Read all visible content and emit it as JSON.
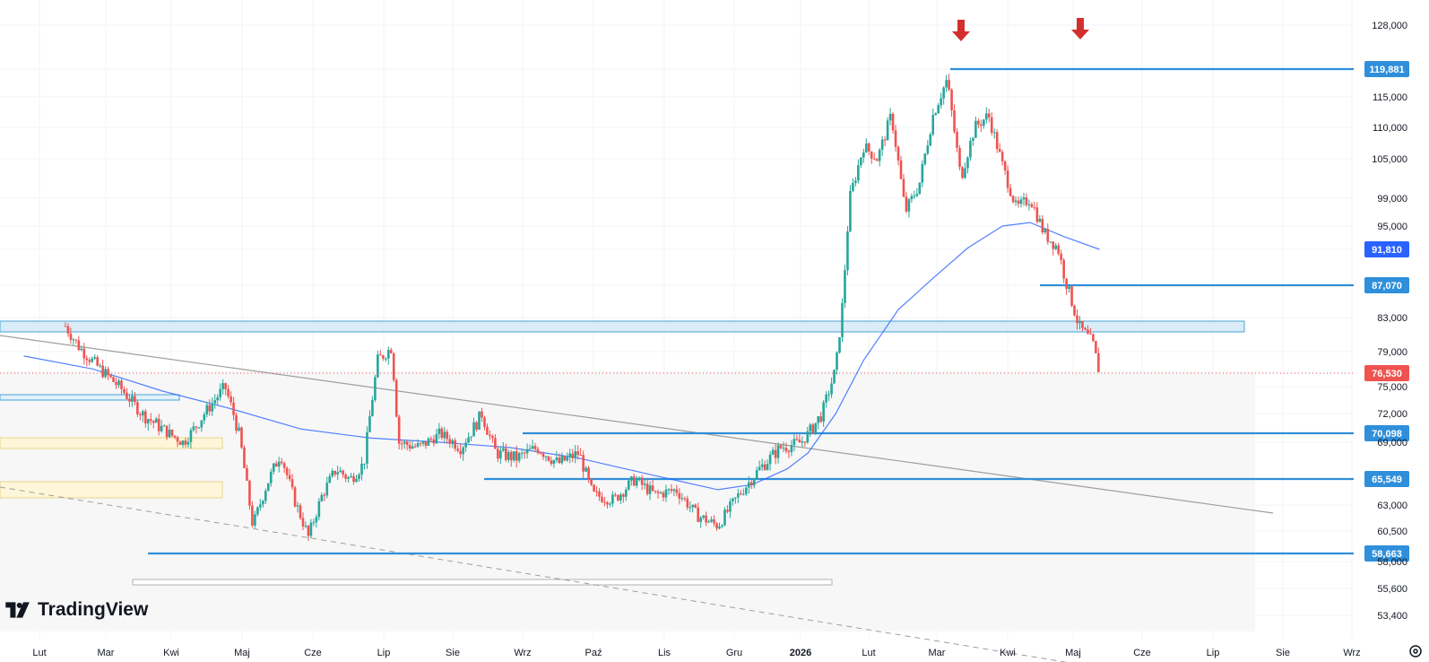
{
  "chart_data": {
    "type": "candlestick",
    "x_ticks": [
      "Lut",
      "Mar",
      "Kwi",
      "Maj",
      "Cze",
      "Lip",
      "Sie",
      "Wrz",
      "Paź",
      "Lis",
      "Gru",
      "2026",
      "Lut",
      "Mar",
      "Kwi",
      "Maj",
      "Cze",
      "Lip",
      "Sie",
      "Wrz"
    ],
    "y_ticks": [
      128000,
      119881,
      115000,
      110000,
      105000,
      99000,
      95000,
      91810,
      87070,
      83000,
      79000,
      76530,
      75000,
      72000,
      70098,
      69000,
      65549,
      63000,
      60500,
      58663,
      58000,
      55600,
      53400
    ],
    "y_tick_labels": [
      "128,000",
      "119,881",
      "115,000",
      "110,000",
      "105,000",
      "99,000",
      "95,000",
      "91,810",
      "87,070",
      "83,000",
      "79,000",
      "76,530",
      "75,000",
      "72,000",
      "70,098",
      "69,000",
      "65,549",
      "63,000",
      "60,500",
      "58,663",
      "58,000",
      "55,600",
      "53,400"
    ],
    "highlighted_levels": [
      {
        "value": 119881,
        "label": "119,881",
        "color": "#2f8fdb"
      },
      {
        "value": 87070,
        "label": "87,070",
        "color": "#2f8fdb"
      },
      {
        "value": 70098,
        "label": "70,098",
        "color": "#2f8fdb"
      },
      {
        "value": 65549,
        "label": "65,549",
        "color": "#2f8fdb"
      },
      {
        "value": 58663,
        "label": "58,663",
        "color": "#2f8fdb"
      }
    ],
    "moving_average_label": {
      "value": 91810,
      "label": "91,810",
      "color": "#2962ff"
    },
    "last_price": {
      "value": 76530,
      "label": "76,530",
      "color": "#ef5350"
    },
    "price_path": [
      [
        2024.06,
        82000
      ],
      [
        2024.08,
        79500
      ],
      [
        2024.11,
        77000
      ],
      [
        2024.14,
        74800
      ],
      [
        2024.17,
        72000
      ],
      [
        2024.2,
        70500
      ],
      [
        2024.23,
        69000
      ],
      [
        2024.26,
        72000
      ],
      [
        2024.29,
        75000
      ],
      [
        2024.31,
        70000
      ],
      [
        2024.33,
        61000
      ],
      [
        2024.35,
        65000
      ],
      [
        2024.37,
        68000
      ],
      [
        2024.39,
        63500
      ],
      [
        2024.41,
        60000
      ],
      [
        2024.43,
        64000
      ],
      [
        2024.45,
        66500
      ],
      [
        2024.47,
        65500
      ],
      [
        2024.49,
        67000
      ],
      [
        2024.51,
        78000
      ],
      [
        2024.53,
        79500
      ],
      [
        2024.54,
        69000
      ],
      [
        2024.57,
        68500
      ],
      [
        2024.6,
        70000
      ],
      [
        2024.63,
        68500
      ],
      [
        2024.66,
        72000
      ],
      [
        2024.68,
        68000
      ],
      [
        2024.71,
        67500
      ],
      [
        2024.74,
        68500
      ],
      [
        2024.77,
        67000
      ],
      [
        2024.8,
        68000
      ],
      [
        2024.82,
        64000
      ],
      [
        2024.85,
        63500
      ],
      [
        2024.88,
        65500
      ],
      [
        2024.91,
        64000
      ],
      [
        2024.94,
        64500
      ],
      [
        2024.97,
        62000
      ],
      [
        2025.0,
        61000
      ],
      [
        2025.03,
        64000
      ],
      [
        2025.06,
        66500
      ],
      [
        2025.09,
        68500
      ],
      [
        2025.12,
        69000
      ],
      [
        2025.15,
        72000
      ],
      [
        2025.17,
        77000
      ],
      [
        2025.18,
        85000
      ],
      [
        2025.19,
        99000
      ],
      [
        2025.21,
        107000
      ],
      [
        2025.23,
        105000
      ],
      [
        2025.25,
        112000
      ],
      [
        2025.27,
        97000
      ],
      [
        2025.29,
        101000
      ],
      [
        2025.31,
        112000
      ],
      [
        2025.33,
        118000
      ],
      [
        2025.35,
        102000
      ],
      [
        2025.37,
        110000
      ],
      [
        2025.39,
        112000
      ],
      [
        2025.41,
        104000
      ],
      [
        2025.43,
        97500
      ],
      [
        2025.45,
        99000
      ],
      [
        2025.47,
        94000
      ],
      [
        2025.49,
        92000
      ],
      [
        2025.5,
        88000
      ],
      [
        2025.52,
        82000
      ],
      [
        2025.54,
        80000
      ],
      [
        2025.55,
        76530
      ]
    ],
    "moving_average": [
      [
        2024.0,
        78500
      ],
      [
        2024.1,
        77000
      ],
      [
        2024.2,
        74500
      ],
      [
        2024.3,
        72500
      ],
      [
        2024.4,
        70500
      ],
      [
        2024.5,
        69500
      ],
      [
        2024.6,
        69000
      ],
      [
        2024.7,
        68500
      ],
      [
        2024.8,
        67500
      ],
      [
        2024.9,
        66000
      ],
      [
        2025.0,
        64500
      ],
      [
        2025.05,
        65000
      ],
      [
        2025.1,
        66500
      ],
      [
        2025.13,
        68000
      ],
      [
        2025.17,
        72000
      ],
      [
        2025.21,
        78000
      ],
      [
        2025.26,
        84000
      ],
      [
        2025.31,
        88000
      ],
      [
        2025.36,
        92000
      ],
      [
        2025.41,
        95000
      ],
      [
        2025.45,
        95500
      ],
      [
        2025.5,
        93500
      ],
      [
        2025.55,
        91810
      ]
    ]
  }
}
